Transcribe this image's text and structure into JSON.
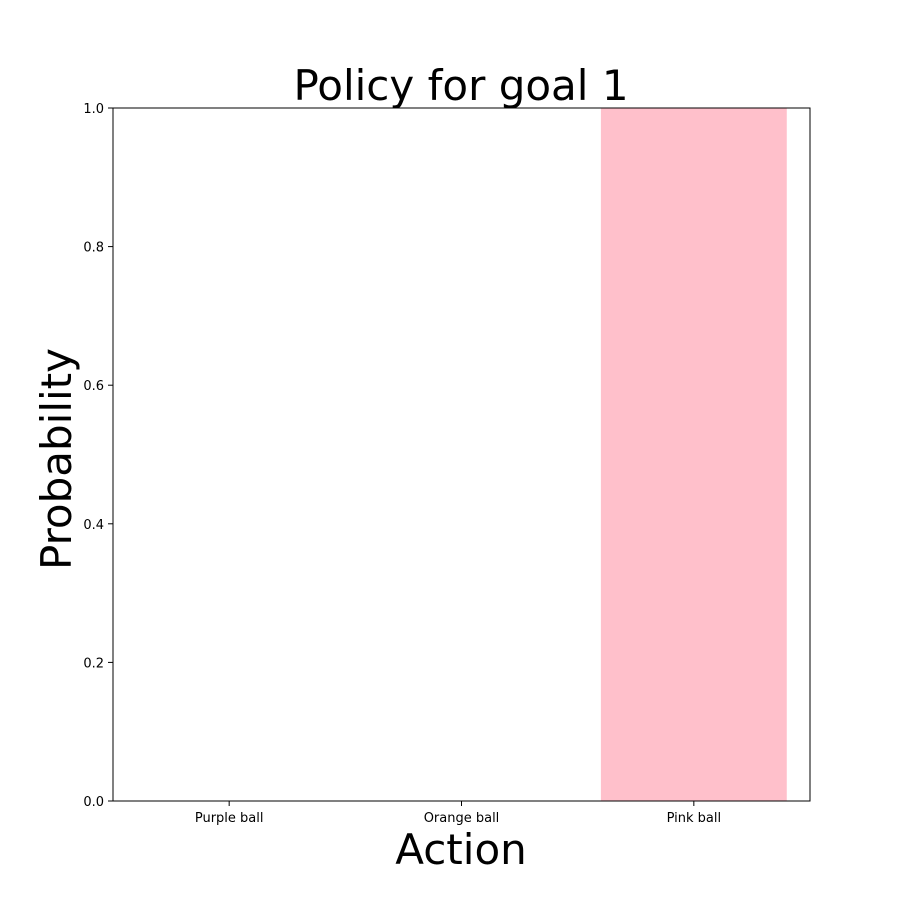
{
  "chart_data": {
    "type": "bar",
    "title": "Policy for goal 1",
    "xlabel": "Action",
    "ylabel": "Probability",
    "categories": [
      "Purple ball",
      "Orange ball",
      "Pink ball"
    ],
    "values": [
      0.0,
      0.0,
      1.0
    ],
    "colors": [
      "#800080",
      "#ffa500",
      "#ffc0cb"
    ],
    "ylim": [
      0.0,
      1.0
    ],
    "yticks": [
      "0.0",
      "0.2",
      "0.4",
      "0.6",
      "0.8",
      "1.0"
    ],
    "grid": false
  }
}
